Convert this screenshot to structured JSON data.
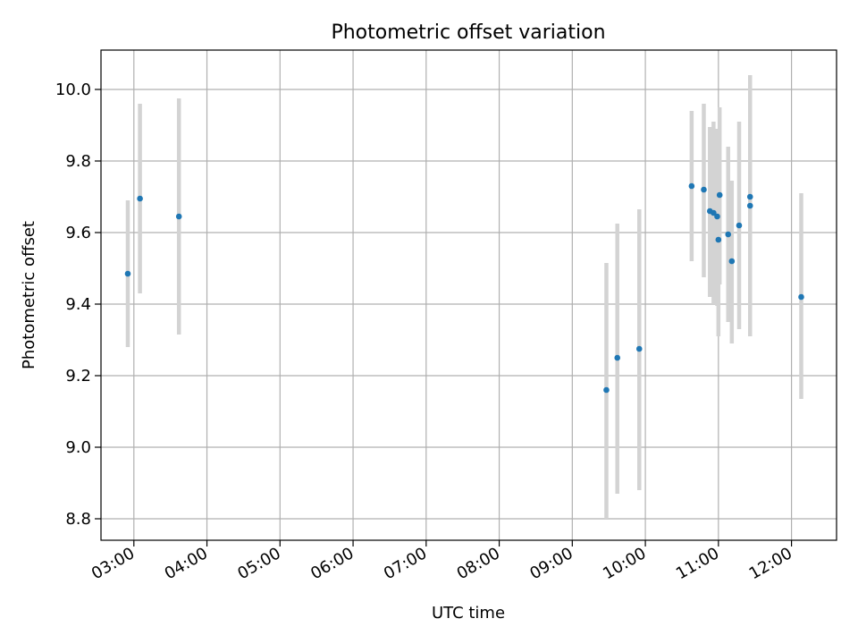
{
  "chart_data": {
    "type": "scatter",
    "title": "Photometric offset variation",
    "xlabel": "UTC time",
    "ylabel": "Photometric offset",
    "x_axis_type": "time",
    "xlim": [
      "02:33",
      "12:37"
    ],
    "ylim": [
      8.74,
      10.11
    ],
    "x_ticks": [
      "03:00",
      "04:00",
      "05:00",
      "06:00",
      "07:00",
      "08:00",
      "09:00",
      "10:00",
      "11:00",
      "12:00"
    ],
    "y_ticks": [
      8.8,
      9.0,
      9.2,
      9.4,
      9.6,
      9.8,
      10.0
    ],
    "grid": true,
    "legend": "none",
    "point_color": "#1f77b4",
    "errorbar_color": "#d3d3d3",
    "points": [
      {
        "x": "02:55",
        "y": 9.485,
        "err_low": 9.28,
        "err_high": 9.69
      },
      {
        "x": "03:05",
        "y": 9.695,
        "err_low": 9.43,
        "err_high": 9.96
      },
      {
        "x": "03:37",
        "y": 9.645,
        "err_low": 9.315,
        "err_high": 9.975
      },
      {
        "x": "09:28",
        "y": 9.16,
        "err_low": 8.8,
        "err_high": 9.515
      },
      {
        "x": "09:37",
        "y": 9.25,
        "err_low": 8.87,
        "err_high": 9.625
      },
      {
        "x": "09:55",
        "y": 9.275,
        "err_low": 8.88,
        "err_high": 9.665
      },
      {
        "x": "10:38",
        "y": 9.73,
        "err_low": 9.52,
        "err_high": 9.94
      },
      {
        "x": "10:48",
        "y": 9.72,
        "err_low": 9.475,
        "err_high": 9.96
      },
      {
        "x": "10:53",
        "y": 9.66,
        "err_low": 9.42,
        "err_high": 9.895
      },
      {
        "x": "10:56",
        "y": 9.655,
        "err_low": 9.4,
        "err_high": 9.91
      },
      {
        "x": "10:59",
        "y": 9.645,
        "err_low": 9.395,
        "err_high": 9.89
      },
      {
        "x": "11:00",
        "y": 9.58,
        "err_low": 9.31,
        "err_high": 9.85
      },
      {
        "x": "11:01",
        "y": 9.705,
        "err_low": 9.455,
        "err_high": 9.95
      },
      {
        "x": "11:08",
        "y": 9.595,
        "err_low": 9.35,
        "err_high": 9.84
      },
      {
        "x": "11:11",
        "y": 9.52,
        "err_low": 9.29,
        "err_high": 9.745
      },
      {
        "x": "11:17",
        "y": 9.62,
        "err_low": 9.33,
        "err_high": 9.91
      },
      {
        "x": "11:26",
        "y": 9.675,
        "err_low": 9.31,
        "err_high": 10.04
      },
      {
        "x": "11:26",
        "y": 9.7,
        "err_low": 9.48,
        "err_high": 9.92
      },
      {
        "x": "12:08",
        "y": 9.42,
        "err_low": 9.135,
        "err_high": 9.71
      }
    ]
  }
}
